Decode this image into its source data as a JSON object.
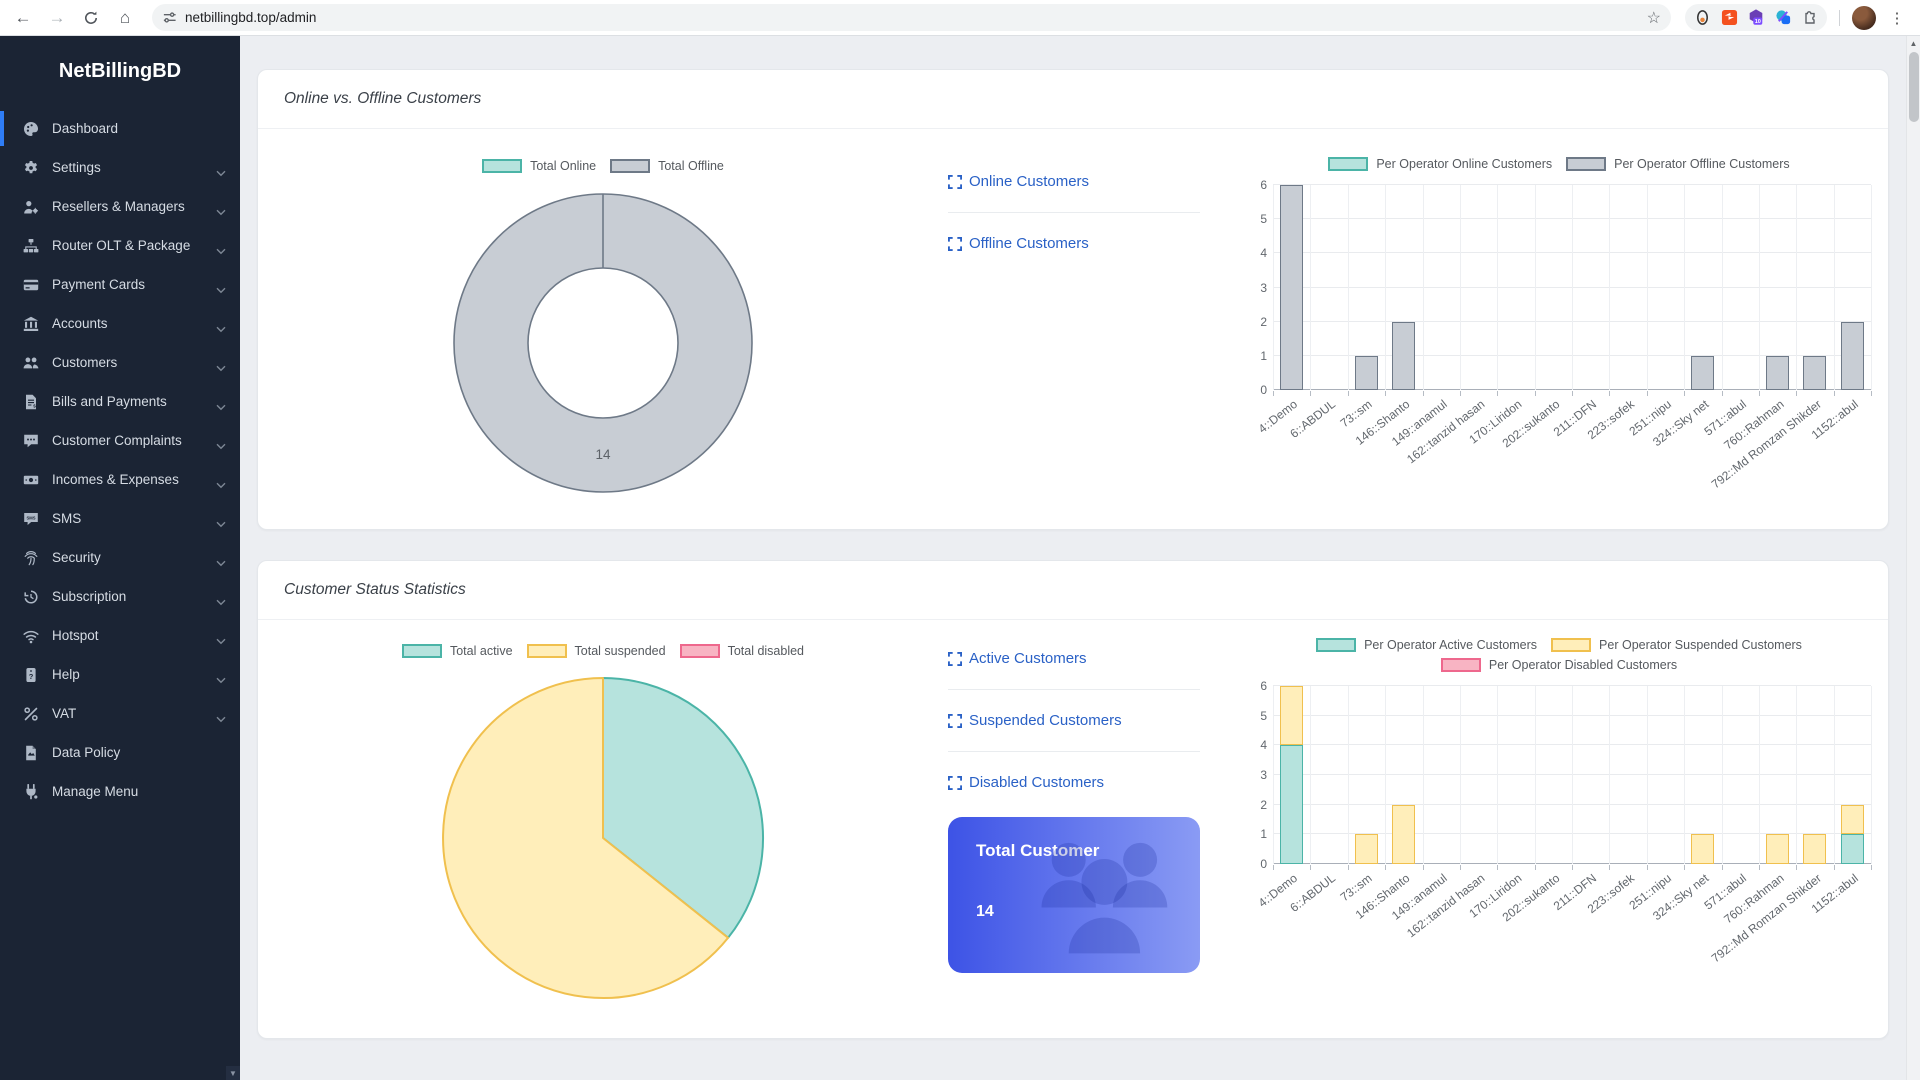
{
  "browser": {
    "url": "netbillingbd.top/admin",
    "extension_badge": "10"
  },
  "sidebar": {
    "brand": "NetBillingBD",
    "items": [
      {
        "label": "Dashboard",
        "icon": "palette",
        "active": true,
        "expandable": false
      },
      {
        "label": "Settings",
        "icon": "gear",
        "active": false,
        "expandable": true
      },
      {
        "label": "Resellers & Managers",
        "icon": "user-gear",
        "active": false,
        "expandable": true
      },
      {
        "label": "Router OLT & Package",
        "icon": "sitemap",
        "active": false,
        "expandable": true
      },
      {
        "label": "Payment Cards",
        "icon": "credit-card",
        "active": false,
        "expandable": true
      },
      {
        "label": "Accounts",
        "icon": "bank",
        "active": false,
        "expandable": true
      },
      {
        "label": "Customers",
        "icon": "users",
        "active": false,
        "expandable": true
      },
      {
        "label": "Bills and Payments",
        "icon": "file-invoice",
        "active": false,
        "expandable": true
      },
      {
        "label": "Customer Complaints",
        "icon": "comment-dots",
        "active": false,
        "expandable": true
      },
      {
        "label": "Incomes & Expenses",
        "icon": "money",
        "active": false,
        "expandable": true
      },
      {
        "label": "SMS",
        "icon": "sms",
        "active": false,
        "expandable": true
      },
      {
        "label": "Security",
        "icon": "fingerprint",
        "active": false,
        "expandable": true
      },
      {
        "label": "Subscription",
        "icon": "history",
        "active": false,
        "expandable": true
      },
      {
        "label": "Hotspot",
        "icon": "wifi",
        "active": false,
        "expandable": true
      },
      {
        "label": "Help",
        "icon": "question",
        "active": false,
        "expandable": true
      },
      {
        "label": "VAT",
        "icon": "percent",
        "active": false,
        "expandable": true
      },
      {
        "label": "Data Policy",
        "icon": "file",
        "active": false,
        "expandable": false
      },
      {
        "label": "Manage Menu",
        "icon": "plug",
        "active": false,
        "expandable": false
      }
    ]
  },
  "cards": [
    {
      "title": "Online vs. Offline Customers",
      "links": [
        {
          "label": "Online Customers"
        },
        {
          "label": "Offline Customers"
        }
      ]
    },
    {
      "title": "Customer Status Statistics",
      "links": [
        {
          "label": "Active Customers"
        },
        {
          "label": "Suspended Customers"
        },
        {
          "label": "Disabled Customers"
        }
      ],
      "total_box": {
        "label": "Total Customer",
        "value": "14"
      }
    }
  ],
  "palette": {
    "teal_fill": "#b6e3dd",
    "teal_border": "#4bb4a7",
    "gray_fill": "#c8cdd4",
    "gray_border": "#6e7987",
    "yellow_fill": "#ffeeba",
    "yellow_border": "#f0c04e",
    "pink_fill": "#f8b4c3",
    "pink_border": "#ee688d",
    "link_blue": "#2a61c6",
    "active_blue": "#2f7df6",
    "total_box_gradient": [
      "#3d53e6",
      "#8a9bf4"
    ]
  },
  "chart_data": [
    {
      "id": "online-offline-doughnut",
      "type": "doughnut",
      "data_label": "14",
      "slices": [
        {
          "label": "Total Online",
          "value": 0,
          "fill": "#b6e3dd",
          "border": "#4bb4a7"
        },
        {
          "label": "Total Offline",
          "value": 14,
          "fill": "#c8cdd4",
          "border": "#6e7987"
        }
      ]
    },
    {
      "id": "per-operator-online-offline",
      "type": "bar",
      "stacked": true,
      "ylim": [
        0,
        6
      ],
      "yticks": [
        0,
        1,
        2,
        3,
        4,
        5,
        6
      ],
      "categories": [
        "4::Demo",
        "6::ABDUL",
        "73::sm",
        "146::Shanto",
        "149::anamul",
        "162::tanzid hasan",
        "170::Liridon",
        "202::sukanto",
        "211::DFN",
        "223::sofek",
        "251::nipu",
        "324::Sky net",
        "571::abul",
        "760::Rahman",
        "792::Md Romzan Shikder",
        "1152::abul"
      ],
      "series": [
        {
          "name": "Per Operator Online Customers",
          "fill": "#b6e3dd",
          "border": "#4bb4a7",
          "values": [
            0,
            0,
            0,
            0,
            0,
            0,
            0,
            0,
            0,
            0,
            0,
            0,
            0,
            0,
            0,
            0
          ]
        },
        {
          "name": "Per Operator Offline Customers",
          "fill": "#c8cdd4",
          "border": "#6e7987",
          "values": [
            6,
            0,
            1,
            2,
            0,
            0,
            0,
            0,
            0,
            0,
            0,
            1,
            0,
            1,
            1,
            2
          ]
        }
      ]
    },
    {
      "id": "customer-status-pie",
      "type": "pie",
      "slices": [
        {
          "label": "Total active",
          "value": 5,
          "fill": "#b6e3dd",
          "border": "#4bb4a7"
        },
        {
          "label": "Total suspended",
          "value": 9,
          "fill": "#ffeeba",
          "border": "#f0c04e"
        },
        {
          "label": "Total disabled",
          "value": 0,
          "fill": "#f8b4c3",
          "border": "#ee688d"
        }
      ]
    },
    {
      "id": "per-operator-status",
      "type": "bar",
      "stacked": true,
      "ylim": [
        0,
        6
      ],
      "yticks": [
        0,
        1,
        2,
        3,
        4,
        5,
        6
      ],
      "categories": [
        "4::Demo",
        "6::ABDUL",
        "73::sm",
        "146::Shanto",
        "149::anamul",
        "162::tanzid hasan",
        "170::Liridon",
        "202::sukanto",
        "211::DFN",
        "223::sofek",
        "251::nipu",
        "324::Sky net",
        "571::abul",
        "760::Rahman",
        "792::Md Romzan Shikder",
        "1152::abul"
      ],
      "series": [
        {
          "name": "Per Operator Active Customers",
          "fill": "#b6e3dd",
          "border": "#4bb4a7",
          "values": [
            4,
            0,
            0,
            0,
            0,
            0,
            0,
            0,
            0,
            0,
            0,
            0,
            0,
            0,
            0,
            1
          ]
        },
        {
          "name": "Per Operator Suspended Customers",
          "fill": "#ffeeba",
          "border": "#f0c04e",
          "values": [
            2,
            0,
            1,
            2,
            0,
            0,
            0,
            0,
            0,
            0,
            0,
            1,
            0,
            1,
            1,
            1
          ]
        },
        {
          "name": "Per Operator Disabled Customers",
          "fill": "#f8b4c3",
          "border": "#ee688d",
          "values": [
            0,
            0,
            0,
            0,
            0,
            0,
            0,
            0,
            0,
            0,
            0,
            0,
            0,
            0,
            0,
            0
          ]
        }
      ]
    }
  ]
}
